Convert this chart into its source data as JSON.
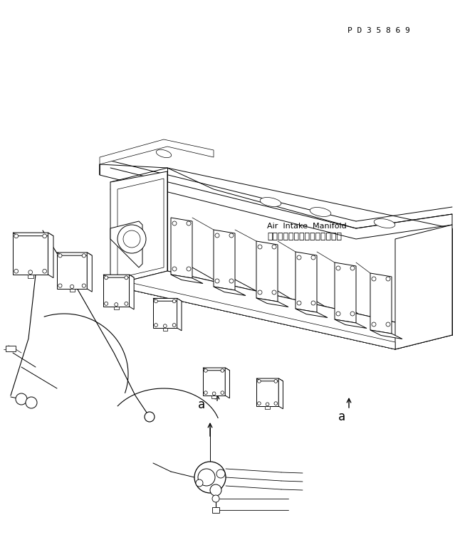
{
  "background_color": "#ffffff",
  "line_color": "#000000",
  "label_a": "a",
  "japanese_text": "エアーインテークマニホールド",
  "english_text": "Air  Intake  Manifold",
  "part_number": "P D 3 5 8 6 9",
  "fig_width": 6.46,
  "fig_height": 7.76,
  "dpi": 100
}
